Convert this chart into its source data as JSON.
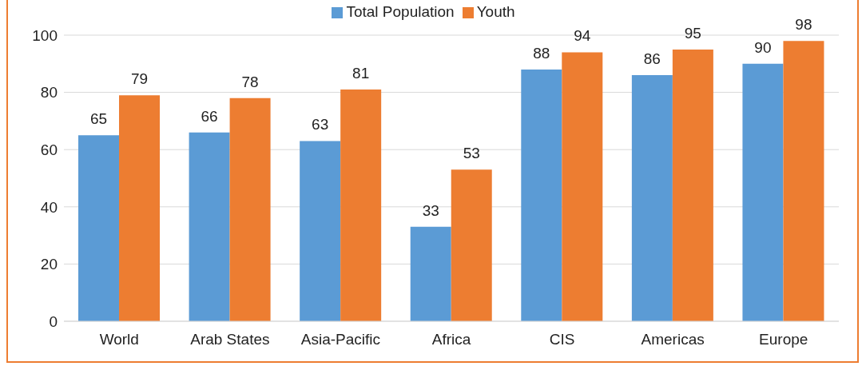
{
  "chart_data": {
    "type": "bar",
    "categories": [
      "World",
      "Arab States",
      "Asia-Pacific",
      "Africa",
      "CIS",
      "Americas",
      "Europe"
    ],
    "series": [
      {
        "name": "Total Population",
        "color": "#5b9bd5",
        "values": [
          65,
          66,
          63,
          33,
          88,
          86,
          90
        ]
      },
      {
        "name": "Youth",
        "color": "#ed7d31",
        "values": [
          79,
          78,
          81,
          53,
          94,
          95,
          98
        ]
      }
    ],
    "ylim": [
      0,
      100
    ],
    "yticks": [
      0,
      20,
      40,
      60,
      80,
      100
    ],
    "grid": "y",
    "legend": "top",
    "data_labels": true
  }
}
